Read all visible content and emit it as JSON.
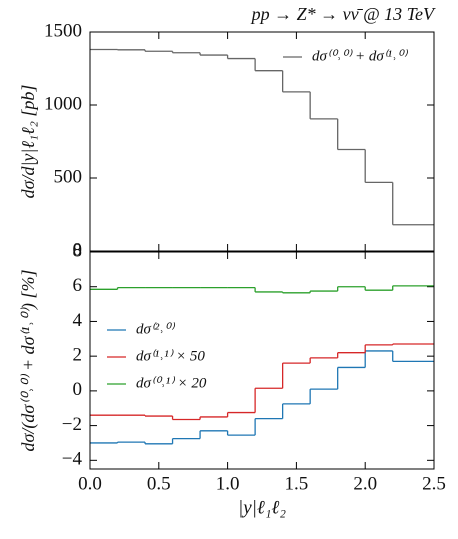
{
  "chart_data": [
    {
      "type": "histogram",
      "title": "pp → Z* → νν̄ @ 13 TeV",
      "ylabel": "dσ/d|y|ℓ₁ℓ₂ [pb]",
      "bins": [
        0,
        0.2,
        0.4,
        0.6,
        0.8,
        1.0,
        1.2,
        1.4,
        1.6,
        1.8,
        2.0,
        2.2,
        2.5
      ],
      "series": [
        {
          "name": "dσ⁽⁰˒⁰⁾ + dσ⁽¹˒⁰⁾",
          "color": "#666666",
          "values": [
            1380,
            1378,
            1368,
            1358,
            1342,
            1318,
            1235,
            1090,
            905,
            695,
            470,
            180
          ]
        }
      ],
      "xlim": [
        0,
        2.5
      ],
      "xticks": [
        0,
        0.5,
        1,
        1.5,
        2,
        2.5
      ],
      "ylim": [
        0,
        1500
      ],
      "yticks": [
        0,
        500,
        1000,
        1500
      ],
      "legend": "upper right"
    },
    {
      "type": "histogram",
      "xlabel": "|y|ℓ₁ℓ₂",
      "ylabel": "dσ/(dσ⁽⁰˒⁰⁾ + dσ⁽¹˒⁰⁾) [%]",
      "bins": [
        0,
        0.2,
        0.4,
        0.6,
        0.8,
        1.0,
        1.2,
        1.4,
        1.6,
        1.8,
        2.0,
        2.2,
        2.5
      ],
      "series": [
        {
          "name": "dσ⁽²˒⁰⁾",
          "color": "#1f77b4",
          "values": [
            -3.0,
            -2.95,
            -3.05,
            -2.75,
            -2.3,
            -2.55,
            -1.6,
            -0.75,
            0.1,
            1.35,
            2.3,
            1.7
          ]
        },
        {
          "name": "dσ⁽¹˒¹⁾ × 50",
          "color": "#d62728",
          "values": [
            -1.4,
            -1.4,
            -1.45,
            -1.65,
            -1.5,
            -1.25,
            0.15,
            1.6,
            1.9,
            2.2,
            2.65,
            2.7
          ]
        },
        {
          "name": "dσ⁽⁰˒¹⁾ × 20",
          "color": "#2ca02c",
          "values": [
            5.85,
            5.95,
            5.95,
            5.95,
            5.95,
            5.95,
            5.7,
            5.65,
            5.75,
            6.0,
            5.8,
            6.05
          ]
        }
      ],
      "xlim": [
        0,
        2.5
      ],
      "xticks": [
        {
          "value": 0,
          "label": "0.0"
        },
        0.5,
        {
          "value": 1,
          "label": "1.0"
        },
        1.5,
        {
          "value": 2,
          "label": "2.0"
        },
        2.5
      ],
      "ylim": [
        -4.5,
        8
      ],
      "yticks": [
        {
          "value": -4,
          "label": "−4"
        },
        {
          "value": -2,
          "label": "−2"
        },
        0,
        2,
        4,
        6,
        8
      ],
      "legend": "center left"
    }
  ]
}
